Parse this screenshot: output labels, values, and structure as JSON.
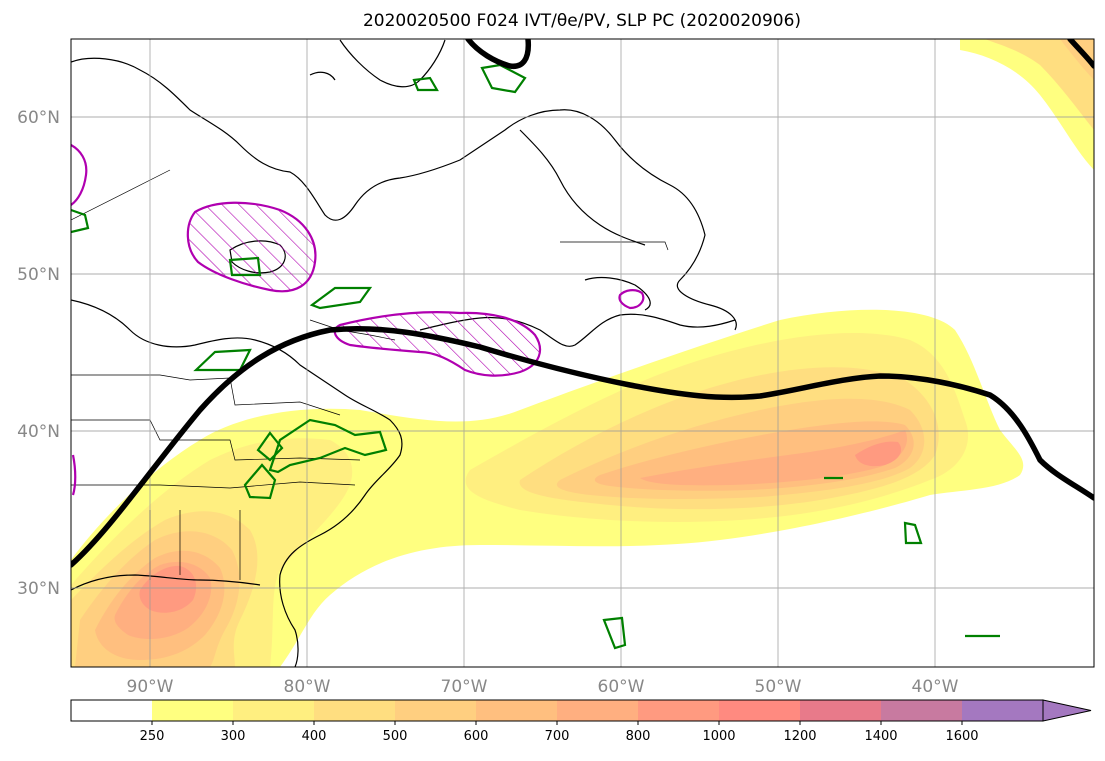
{
  "title": "2020020500 F024 IVT/θe/PV, SLP PC (2020020906)",
  "map": {
    "lon_labels": [
      "90°W",
      "80°W",
      "70°W",
      "60°W",
      "50°W",
      "40°W"
    ],
    "lat_labels": [
      "60°N",
      "50°N",
      "40°N",
      "30°N"
    ],
    "lon_range": [
      -95,
      -30
    ],
    "lat_range": [
      25,
      65
    ],
    "projection": "PlateCarree",
    "grid": true
  },
  "layers": {
    "ivt_fill": "IVT (shaded, yellow to purple)",
    "theta_e": "green contours",
    "pv": "magenta hatched contours",
    "slp_pc": "thick black contour"
  },
  "colorbar": {
    "labels": [
      "250",
      "300",
      "400",
      "500",
      "600",
      "700",
      "800",
      "1000",
      "1200",
      "1400",
      "1600"
    ],
    "colors": [
      "#ffffff",
      "#ffff80",
      "#ffef80",
      "#ffde80",
      "#ffcf80",
      "#ffbf7f",
      "#ffaf80",
      "#ff9a80",
      "#ff8a80",
      "#e87a8a",
      "#c87aa0",
      "#a478c0"
    ],
    "extend": "max"
  }
}
